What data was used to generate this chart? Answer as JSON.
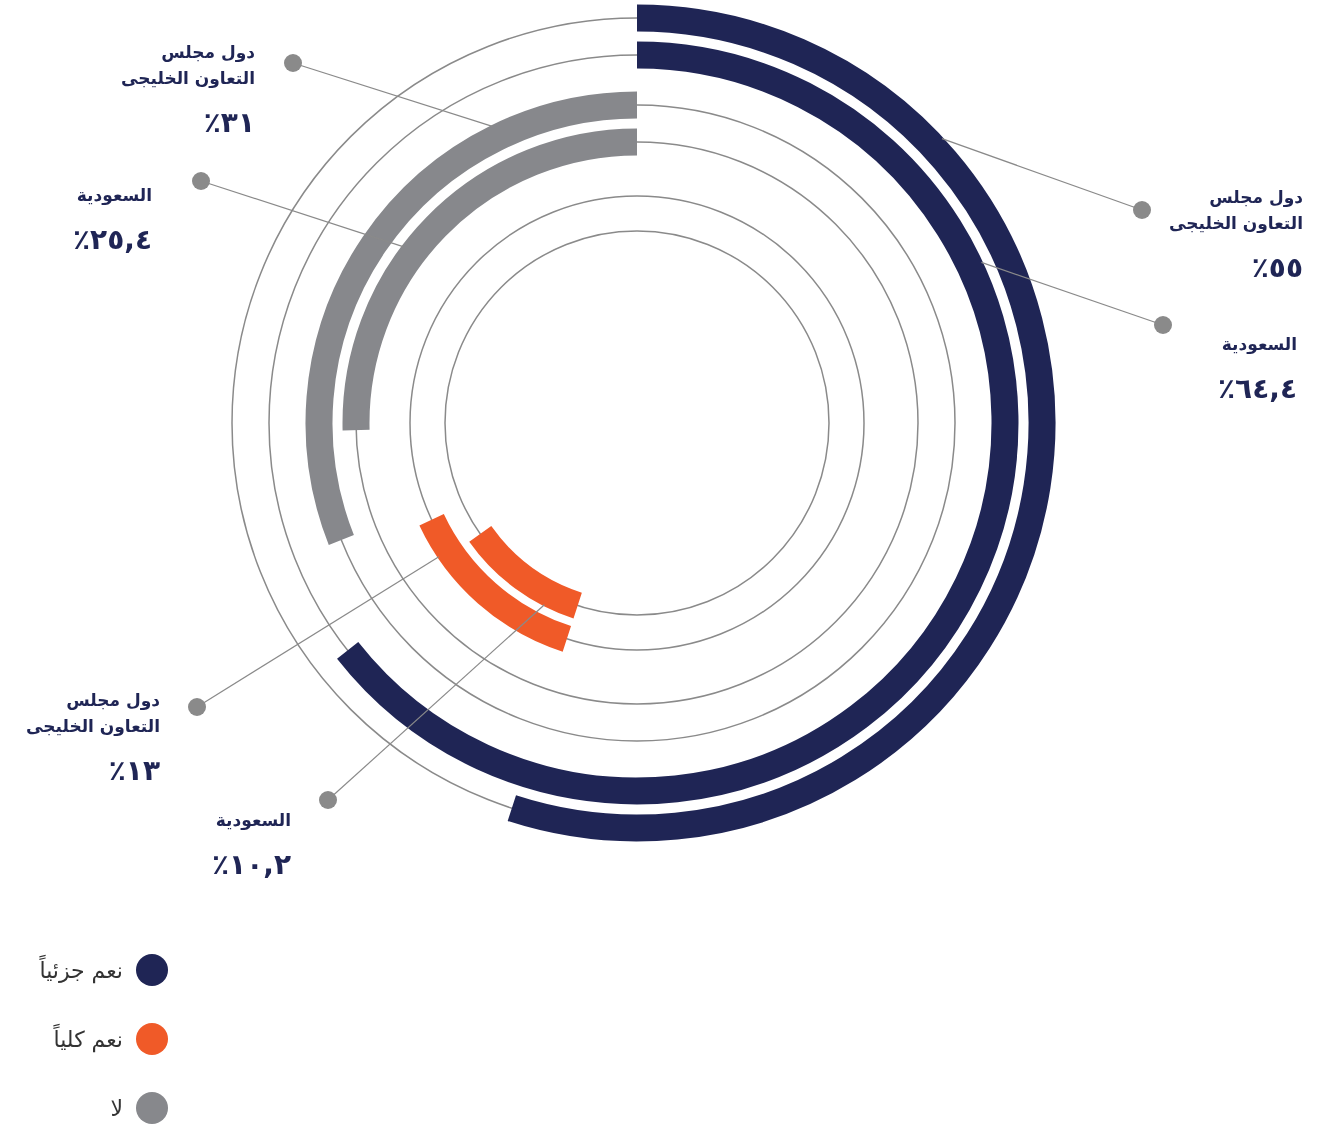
{
  "chart_data": {
    "type": "other",
    "categories": [
      "دول مجلس التعاون الخليجى",
      "السعودية"
    ],
    "series": [
      {
        "name": "نعم جزئياً",
        "color": "#1f2555",
        "values": [
          55,
          64.4
        ],
        "value_labels": [
          "٥٥٪",
          "٦٤,٤٪"
        ]
      },
      {
        "name": "نعم كلياً",
        "color": "#f05a28",
        "values": [
          13,
          10.2
        ],
        "value_labels": [
          "١٣٪",
          "١٠,٢٪"
        ]
      },
      {
        "name": "لا",
        "color": "#87888c",
        "values": [
          31,
          25.4
        ],
        "value_labels": [
          "٣١٪",
          "٢٥,٤٪"
        ]
      }
    ],
    "legend": "bottom left"
  }
}
